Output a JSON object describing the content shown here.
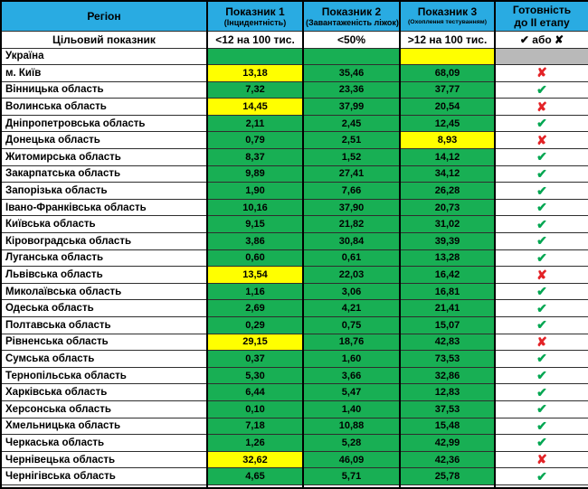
{
  "colors": {
    "header_bg": "#29ABE2",
    "cell_green": "#18AF54",
    "cell_yellow": "#FFFF00",
    "cell_gray": "#B9B9B9",
    "check_green": "#00A651",
    "cross_red": "#E32226",
    "border_black": "#000000"
  },
  "icons": {
    "check": "✔",
    "cross": "✘",
    "none": ""
  },
  "chart_data": {
    "type": "table",
    "header": {
      "region": "Регіон",
      "col1_title": "Показник 1",
      "col1_sub": "(Інцидентність)",
      "col2_title": "Показник 2",
      "col2_sub": "(Завантаженість ліжок)",
      "col3_title": "Показник 3",
      "col3_sub": "(Охоплення тестуванням)",
      "ready_line1": "Готовність",
      "ready_line2": "до II етапу"
    },
    "target_row": {
      "label": "Цільовий показник",
      "col1": "<12 на 100 тис.",
      "col2": "<50%",
      "col3": ">12 на 100 тис.",
      "ready": "✔ або ✘"
    },
    "rows": [
      {
        "region": "Україна",
        "v1": "",
        "c1": "green",
        "v2": "",
        "c2": "green",
        "v3": "",
        "c3": "yellow",
        "mark": "none",
        "ready_bg": "gray"
      },
      {
        "region": "м. Київ",
        "v1": "13,18",
        "c1": "yellow",
        "v2": "35,46",
        "c2": "green",
        "v3": "68,09",
        "c3": "green",
        "mark": "cross",
        "ready_bg": "white"
      },
      {
        "region": "Вінницька область",
        "v1": "7,32",
        "c1": "green",
        "v2": "23,36",
        "c2": "green",
        "v3": "37,77",
        "c3": "green",
        "mark": "check",
        "ready_bg": "white"
      },
      {
        "region": "Волинська область",
        "v1": "14,45",
        "c1": "yellow",
        "v2": "37,99",
        "c2": "green",
        "v3": "20,54",
        "c3": "green",
        "mark": "cross",
        "ready_bg": "white"
      },
      {
        "region": "Дніпропетровська область",
        "v1": "2,11",
        "c1": "green",
        "v2": "2,45",
        "c2": "green",
        "v3": "12,45",
        "c3": "green",
        "mark": "check",
        "ready_bg": "white"
      },
      {
        "region": "Донецька область",
        "v1": "0,79",
        "c1": "green",
        "v2": "2,51",
        "c2": "green",
        "v3": "8,93",
        "c3": "yellow",
        "mark": "cross",
        "ready_bg": "white"
      },
      {
        "region": "Житомирська область",
        "v1": "8,37",
        "c1": "green",
        "v2": "1,52",
        "c2": "green",
        "v3": "14,12",
        "c3": "green",
        "mark": "check",
        "ready_bg": "white"
      },
      {
        "region": "Закарпатська область",
        "v1": "9,89",
        "c1": "green",
        "v2": "27,41",
        "c2": "green",
        "v3": "34,12",
        "c3": "green",
        "mark": "check",
        "ready_bg": "white"
      },
      {
        "region": "Запорізька область",
        "v1": "1,90",
        "c1": "green",
        "v2": "7,66",
        "c2": "green",
        "v3": "26,28",
        "c3": "green",
        "mark": "check",
        "ready_bg": "white"
      },
      {
        "region": "Івано-Франківська область",
        "v1": "10,16",
        "c1": "green",
        "v2": "37,90",
        "c2": "green",
        "v3": "20,73",
        "c3": "green",
        "mark": "check",
        "ready_bg": "white"
      },
      {
        "region": "Київська область",
        "v1": "9,15",
        "c1": "green",
        "v2": "21,82",
        "c2": "green",
        "v3": "31,02",
        "c3": "green",
        "mark": "check",
        "ready_bg": "white"
      },
      {
        "region": "Кіровоградська область",
        "v1": "3,86",
        "c1": "green",
        "v2": "30,84",
        "c2": "green",
        "v3": "39,39",
        "c3": "green",
        "mark": "check",
        "ready_bg": "white"
      },
      {
        "region": "Луганська область",
        "v1": "0,60",
        "c1": "green",
        "v2": "0,61",
        "c2": "green",
        "v3": "13,28",
        "c3": "green",
        "mark": "check",
        "ready_bg": "white"
      },
      {
        "region": "Львівська область",
        "v1": "13,54",
        "c1": "yellow",
        "v2": "22,03",
        "c2": "green",
        "v3": "16,42",
        "c3": "green",
        "mark": "cross",
        "ready_bg": "white"
      },
      {
        "region": "Миколаївська область",
        "v1": "1,16",
        "c1": "green",
        "v2": "3,06",
        "c2": "green",
        "v3": "16,81",
        "c3": "green",
        "mark": "check",
        "ready_bg": "white"
      },
      {
        "region": "Одеська область",
        "v1": "2,69",
        "c1": "green",
        "v2": "4,21",
        "c2": "green",
        "v3": "21,41",
        "c3": "green",
        "mark": "check",
        "ready_bg": "white"
      },
      {
        "region": "Полтавська область",
        "v1": "0,29",
        "c1": "green",
        "v2": "0,75",
        "c2": "green",
        "v3": "15,07",
        "c3": "green",
        "mark": "check",
        "ready_bg": "white"
      },
      {
        "region": "Рівненська область",
        "v1": "29,15",
        "c1": "yellow",
        "v2": "18,76",
        "c2": "green",
        "v3": "42,83",
        "c3": "green",
        "mark": "cross",
        "ready_bg": "white"
      },
      {
        "region": "Сумська область",
        "v1": "0,37",
        "c1": "green",
        "v2": "1,60",
        "c2": "green",
        "v3": "73,53",
        "c3": "green",
        "mark": "check",
        "ready_bg": "white"
      },
      {
        "region": "Тернопільська область",
        "v1": "5,30",
        "c1": "green",
        "v2": "3,66",
        "c2": "green",
        "v3": "32,86",
        "c3": "green",
        "mark": "check",
        "ready_bg": "white"
      },
      {
        "region": "Харківська область",
        "v1": "6,44",
        "c1": "green",
        "v2": "5,47",
        "c2": "green",
        "v3": "12,83",
        "c3": "green",
        "mark": "check",
        "ready_bg": "white"
      },
      {
        "region": "Херсонська область",
        "v1": "0,10",
        "c1": "green",
        "v2": "1,40",
        "c2": "green",
        "v3": "37,53",
        "c3": "green",
        "mark": "check",
        "ready_bg": "white"
      },
      {
        "region": "Хмельницька область",
        "v1": "7,18",
        "c1": "green",
        "v2": "10,88",
        "c2": "green",
        "v3": "15,48",
        "c3": "green",
        "mark": "check",
        "ready_bg": "white"
      },
      {
        "region": "Черкаська область",
        "v1": "1,26",
        "c1": "green",
        "v2": "5,28",
        "c2": "green",
        "v3": "42,99",
        "c3": "green",
        "mark": "check",
        "ready_bg": "white"
      },
      {
        "region": "Чернівецька область",
        "v1": "32,62",
        "c1": "yellow",
        "v2": "46,09",
        "c2": "green",
        "v3": "42,36",
        "c3": "green",
        "mark": "cross",
        "ready_bg": "white"
      },
      {
        "region": "Чернігівська область",
        "v1": "4,65",
        "c1": "green",
        "v2": "5,71",
        "c2": "green",
        "v3": "25,78",
        "c3": "green",
        "mark": "check",
        "ready_bg": "white"
      }
    ]
  }
}
